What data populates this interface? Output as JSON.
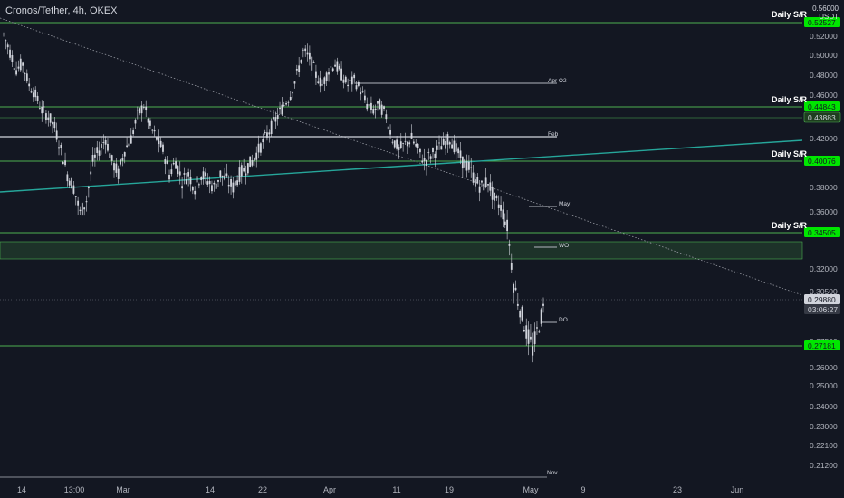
{
  "header": {
    "symbol_title": "Cronos/Tether, 4h, OKEX",
    "price_top": "0.56000",
    "currency": "USDT"
  },
  "colors": {
    "background": "#131722",
    "candle": "#d1d4dc",
    "sr_line": "#4caf50",
    "sr_label_bg": "#00e600",
    "trendline": "#26a69a",
    "dotted_trend": "#9598a1",
    "level_line": "#b2b5be"
  },
  "chart_data": {
    "type": "candlestick",
    "title": "Cronos/Tether, 4h, OKEX",
    "x_ticks": [
      "14",
      "13:00",
      "Mar",
      "14",
      "22",
      "Apr",
      "11",
      "19",
      "May",
      "9",
      "23",
      "Jun"
    ],
    "y_ticks": [
      "0.52000",
      "0.50000",
      "0.48000",
      "0.46000",
      "0.42000",
      "0.38000",
      "0.36000",
      "0.32000",
      "0.30500",
      "0.27500",
      "0.26000",
      "0.25000",
      "0.24000",
      "0.23000",
      "0.22100",
      "0.21200"
    ],
    "y_range": [
      0.2,
      0.56
    ],
    "price_labels": [
      {
        "value": "0.52527",
        "kind": "sr"
      },
      {
        "value": "0.44843",
        "kind": "sr"
      },
      {
        "value": "0.43883",
        "kind": "dark"
      },
      {
        "value": "0.40076",
        "kind": "sr"
      },
      {
        "value": "0.34505",
        "kind": "sr"
      },
      {
        "value": "0.29880",
        "kind": "last"
      },
      {
        "value": "03:06:27",
        "kind": "countdown"
      },
      {
        "value": "0.27181",
        "kind": "sr"
      }
    ],
    "annotations": [
      "Daily S/R",
      "Daily S/R",
      "Daily S/R",
      "Daily S/R",
      "Apr  O2",
      "Feb",
      "May",
      "WO",
      "DO",
      "Nov"
    ],
    "close_path": [
      0.515,
      0.5,
      0.485,
      0.49,
      0.47,
      0.46,
      0.445,
      0.44,
      0.43,
      0.41,
      0.39,
      0.38,
      0.36,
      0.37,
      0.4,
      0.41,
      0.42,
      0.4,
      0.39,
      0.41,
      0.42,
      0.44,
      0.45,
      0.43,
      0.42,
      0.41,
      0.39,
      0.4,
      0.385,
      0.39,
      0.38,
      0.39,
      0.385,
      0.38,
      0.39,
      0.385,
      0.38,
      0.39,
      0.395,
      0.4,
      0.41,
      0.42,
      0.43,
      0.44,
      0.45,
      0.46,
      0.48,
      0.5,
      0.495,
      0.48,
      0.47,
      0.485,
      0.49,
      0.48,
      0.47,
      0.475,
      0.465,
      0.45,
      0.445,
      0.45,
      0.44,
      0.42,
      0.41,
      0.415,
      0.42,
      0.41,
      0.4,
      0.405,
      0.41,
      0.415,
      0.42,
      0.41,
      0.4,
      0.395,
      0.385,
      0.38,
      0.385,
      0.37,
      0.365,
      0.35,
      0.31,
      0.295,
      0.28,
      0.27,
      0.285,
      0.2988
    ]
  }
}
